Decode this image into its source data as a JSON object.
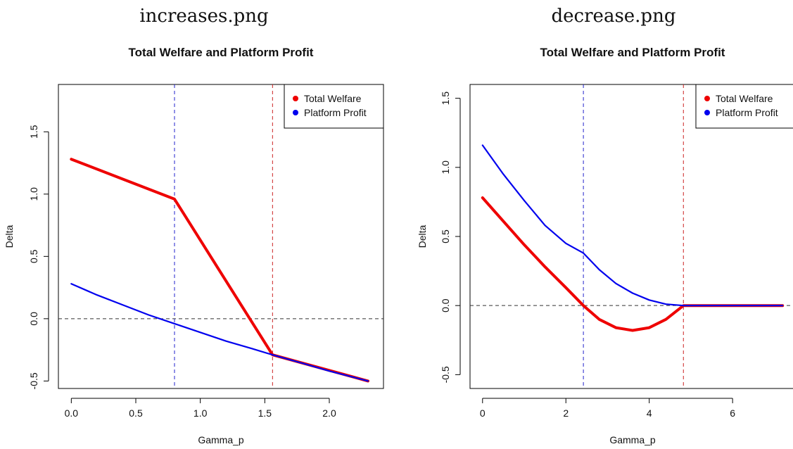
{
  "captions": [
    "increases.png",
    "decrease.png"
  ],
  "chart_data": [
    {
      "type": "line",
      "title": "Total Welfare and Platform Profit",
      "xlabel": "Gamma_p",
      "ylabel": "Delta",
      "xlim": [
        -0.1,
        2.42
      ],
      "ylim": [
        -0.56,
        1.88
      ],
      "xticks": [
        0.0,
        0.5,
        1.0,
        1.5,
        2.0
      ],
      "xtick_labels": [
        "0.0",
        "0.5",
        "1.0",
        "1.5",
        "2.0"
      ],
      "yticks": [
        -0.5,
        0.0,
        0.5,
        1.0,
        1.5
      ],
      "ytick_labels": [
        "-0.5",
        "0.0",
        "0.5",
        "1.0",
        "1.5"
      ],
      "hline": 0,
      "vlines": [
        {
          "x": 0.8,
          "color": "#2222cc"
        },
        {
          "x": 1.56,
          "color": "#cc2222"
        }
      ],
      "legend_position": "top-right",
      "series": [
        {
          "name": "Total Welfare",
          "color": "#ee0000",
          "x": [
            0.0,
            0.8,
            1.56,
            2.3
          ],
          "y": [
            1.28,
            0.96,
            -0.29,
            -0.5
          ]
        },
        {
          "name": "Platform Profit",
          "color": "#0000ee",
          "x": [
            0.0,
            0.2,
            0.4,
            0.6,
            0.8,
            1.0,
            1.2,
            1.4,
            1.56,
            1.8,
            2.0,
            2.3
          ],
          "y": [
            0.28,
            0.19,
            0.11,
            0.03,
            -0.04,
            -0.11,
            -0.18,
            -0.24,
            -0.29,
            -0.36,
            -0.42,
            -0.5
          ]
        }
      ]
    },
    {
      "type": "line",
      "title": "Total Welfare and Platform Profit",
      "xlabel": "Gamma_p",
      "ylabel": "Delta",
      "xlim": [
        -0.3,
        7.5
      ],
      "ylim": [
        -0.6,
        1.6
      ],
      "xticks": [
        0,
        2,
        4,
        6
      ],
      "xtick_labels": [
        "0",
        "2",
        "4",
        "6"
      ],
      "yticks": [
        -0.5,
        0.0,
        0.5,
        1.0,
        1.5
      ],
      "ytick_labels": [
        "-0.5",
        "0.0",
        "0.5",
        "1.0",
        "1.5"
      ],
      "hline": 0,
      "vlines": [
        {
          "x": 2.42,
          "color": "#2222cc"
        },
        {
          "x": 4.82,
          "color": "#cc2222"
        }
      ],
      "legend_position": "top-right",
      "series": [
        {
          "name": "Total Welfare",
          "color": "#ee0000",
          "x": [
            0.0,
            0.5,
            1.0,
            1.5,
            2.0,
            2.42,
            2.8,
            3.2,
            3.6,
            4.0,
            4.4,
            4.82,
            5.5,
            6.5,
            7.2
          ],
          "y": [
            0.78,
            0.61,
            0.44,
            0.28,
            0.13,
            0.0,
            -0.1,
            -0.16,
            -0.18,
            -0.16,
            -0.1,
            0.0,
            0.0,
            0.0,
            0.0
          ]
        },
        {
          "name": "Platform Profit",
          "color": "#0000ee",
          "x": [
            0.0,
            0.5,
            1.0,
            1.5,
            2.0,
            2.42,
            2.8,
            3.2,
            3.6,
            4.0,
            4.4,
            4.82,
            5.5,
            6.5,
            7.2
          ],
          "y": [
            1.16,
            0.95,
            0.76,
            0.58,
            0.45,
            0.38,
            0.26,
            0.16,
            0.09,
            0.04,
            0.01,
            0.0,
            0.0,
            0.0,
            0.0
          ]
        }
      ]
    }
  ]
}
